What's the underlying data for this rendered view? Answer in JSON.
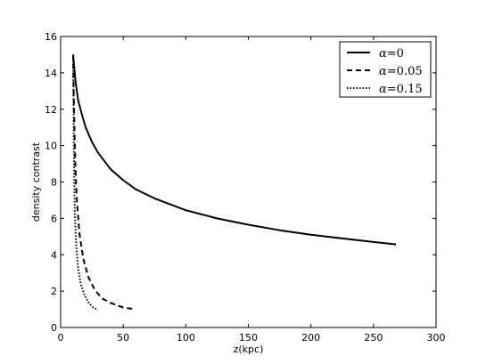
{
  "chart_data": {
    "type": "line",
    "title": "",
    "xlabel": "z(kpc)",
    "ylabel": "density contrast",
    "xlim": [
      0,
      300
    ],
    "ylim": [
      0,
      16
    ],
    "xticks": [
      0,
      50,
      100,
      150,
      200,
      250,
      300
    ],
    "yticks": [
      0,
      2,
      4,
      6,
      8,
      10,
      12,
      14,
      16
    ],
    "grid": false,
    "legend_position": "top-right",
    "series": [
      {
        "name": "α=0",
        "alpha_value": "0",
        "style": "solid",
        "color": "#000000",
        "x": [
          10,
          11,
          12,
          14,
          17,
          20,
          25,
          30,
          40,
          50,
          60,
          75,
          100,
          125,
          150,
          175,
          200,
          225,
          250,
          268
        ],
        "y": [
          15.0,
          14.2,
          13.5,
          12.5,
          11.7,
          11.0,
          10.2,
          9.6,
          8.7,
          8.1,
          7.6,
          7.1,
          6.45,
          6.0,
          5.65,
          5.35,
          5.1,
          4.9,
          4.7,
          4.57
        ]
      },
      {
        "name": "α=0.05",
        "alpha_value": "0.05",
        "style": "dashed",
        "color": "#000000",
        "x": [
          10,
          10.3,
          10.7,
          11.2,
          12,
          13,
          15,
          18,
          22,
          27,
          33,
          40,
          50,
          60
        ],
        "y": [
          15.0,
          13.5,
          12.0,
          10.5,
          8.5,
          7.0,
          5.2,
          3.8,
          2.8,
          2.1,
          1.6,
          1.35,
          1.1,
          1.0
        ]
      },
      {
        "name": "α=0.15",
        "alpha_value": "0.15",
        "style": "dotted",
        "color": "#000000",
        "x": [
          10,
          10.2,
          10.4,
          10.7,
          11,
          11.5,
          12.5,
          14,
          16,
          19,
          22,
          26,
          29
        ],
        "y": [
          15.0,
          13.0,
          11.0,
          9.0,
          7.5,
          6.0,
          4.5,
          3.3,
          2.4,
          1.8,
          1.4,
          1.1,
          1.0
        ]
      }
    ]
  }
}
